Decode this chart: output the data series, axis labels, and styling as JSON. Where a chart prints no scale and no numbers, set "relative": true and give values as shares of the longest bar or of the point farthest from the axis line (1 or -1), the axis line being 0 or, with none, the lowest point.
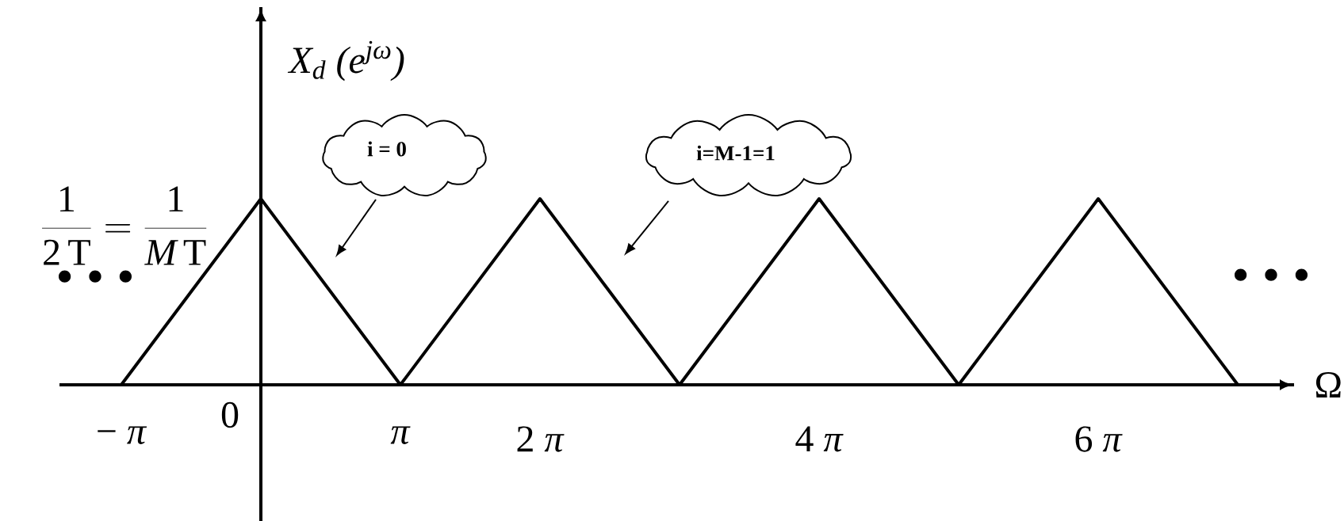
{
  "chart_data": {
    "type": "line",
    "relative": true,
    "xlabel": "Ω",
    "ylabel": "X$_{d}$ (e$^{jω}$)",
    "x": [
      -1,
      0,
      1,
      2,
      3,
      4,
      5,
      6,
      7
    ],
    "values": [
      0,
      1,
      0,
      1,
      0,
      1,
      0,
      1,
      0
    ],
    "color": "#000000",
    "line_style": "solid",
    "xlim": [
      -1.443,
      7.403
    ],
    "xticks": [
      {
        "value": -1,
        "label": "− *π*"
      },
      {
        "value": 1,
        "label": "*π*"
      },
      {
        "value": 2,
        "label": "2 *π*"
      },
      {
        "value": 4,
        "label": "4 *π*"
      },
      {
        "value": 6,
        "label": "6 *π*"
      }
    ],
    "annotations": [
      "\\frac{1}{2\\,\\mathrm{T}}=\\frac{1}{M\\,\\mathrm{T}}",
      "i = 0",
      "i=M-1=1",
      "• • •",
      "• • •",
      "0"
    ]
  }
}
